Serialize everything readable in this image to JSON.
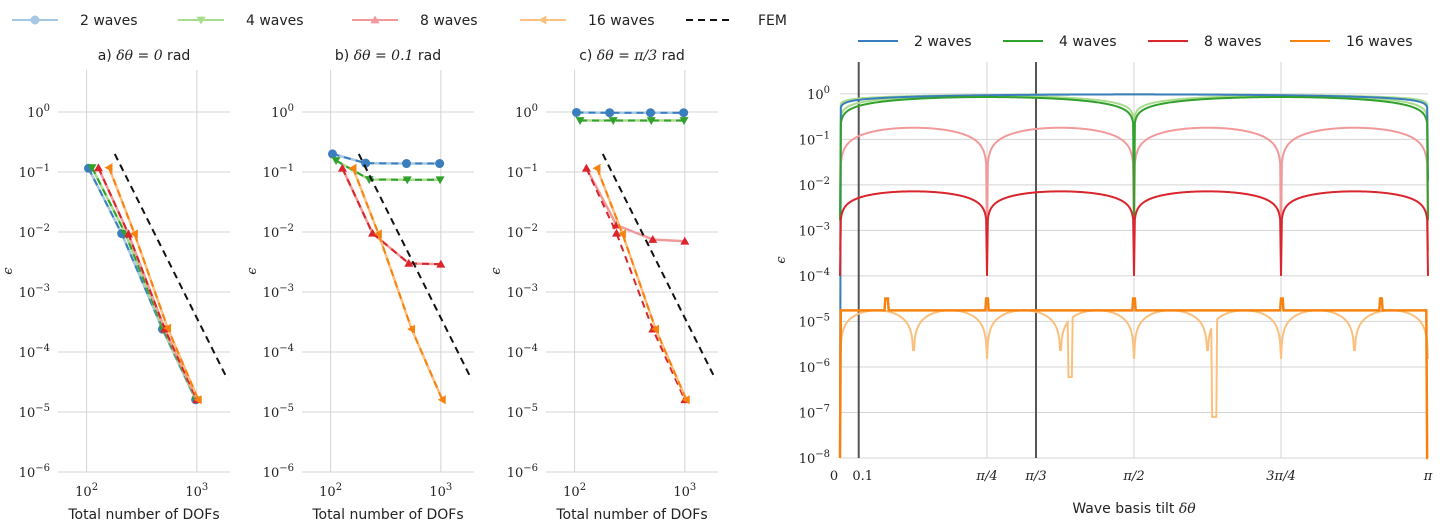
{
  "colors": {
    "2 waves": "#3a7ebd",
    "2 waves light": "#a6c8e4",
    "4 waves": "#32a02c",
    "4 waves light": "#a9dc8c",
    "8 waves": "#d9252b",
    "8 waves light": "#f2999b",
    "16 waves": "#f7820f",
    "16 waves light": "#fcc07e",
    "FEM": "#111111",
    "grid": "#d4d4d4",
    "vline": "#555555"
  },
  "left_legend": [
    "2 waves",
    "4 waves",
    "8 waves",
    "16 waves",
    "FEM"
  ],
  "right_legend": [
    "2 waves",
    "4 waves",
    "8 waves",
    "16 waves"
  ],
  "x_label": "Total number of DOFs",
  "y_label": "ϵ",
  "right_x_label_text": "Wave basis tilt",
  "right_x_label_math": "δθ",
  "chart_data": [
    {
      "type": "line",
      "panel": "a",
      "title_prefix": "a)",
      "title_math": "δθ = 0",
      "title_suffix": "rad",
      "xscale": "log",
      "yscale": "log",
      "xlim": [
        55,
        2000
      ],
      "ylim": [
        1e-06,
        5
      ],
      "xticks": [
        100,
        1000
      ],
      "xtick_labels": [
        "10^2",
        "10^3"
      ],
      "yticks": [
        1e-06,
        1e-05,
        0.0001,
        0.001,
        0.01,
        0.1,
        1
      ],
      "ytick_labels": [
        "10^-6",
        "10^-5",
        "10^-4",
        "10^-3",
        "10^-2",
        "10^-1",
        "10^0"
      ],
      "series": [
        {
          "name": "2 waves",
          "marker": "circle",
          "x": [
            104,
            208,
            488,
            976
          ],
          "y": [
            0.115,
            0.0094,
            0.00024,
            1.6e-05
          ],
          "ref_y": [
            0.115,
            0.0094,
            0.00024,
            1.6e-05
          ]
        },
        {
          "name": "4 waves",
          "marker": "triangle-down",
          "x": [
            112,
            224,
            496,
            984
          ],
          "y": [
            0.118,
            0.0095,
            0.00024,
            1.6e-05
          ],
          "ref_y": [
            0.118,
            0.0095,
            0.00024,
            1.6e-05
          ]
        },
        {
          "name": "8 waves",
          "marker": "triangle-up",
          "x": [
            128,
            240,
            512,
            1000
          ],
          "y": [
            0.117,
            0.0092,
            0.00024,
            1.6e-05
          ],
          "ref_y": [
            0.117,
            0.0092,
            0.00024,
            1.6e-05
          ]
        },
        {
          "name": "16 waves",
          "marker": "triangle-left",
          "x": [
            160,
            272,
            544,
            1032
          ],
          "y": [
            0.118,
            0.0093,
            0.00025,
            1.6e-05
          ],
          "ref_y": [
            0.118,
            0.0093,
            0.00025,
            1.6e-05
          ]
        },
        {
          "name": "FEM",
          "marker": "none",
          "x": [
            180,
            1900
          ],
          "y": [
            0.2,
            3.5e-05
          ]
        }
      ]
    },
    {
      "type": "line",
      "panel": "b",
      "title_prefix": "b)",
      "title_math": "δθ = 0.1",
      "title_suffix": "rad",
      "xscale": "log",
      "yscale": "log",
      "xlim": [
        55,
        2000
      ],
      "ylim": [
        1e-06,
        5
      ],
      "xticks": [
        100,
        1000
      ],
      "xtick_labels": [
        "10^2",
        "10^3"
      ],
      "yticks": [
        1e-06,
        1e-05,
        0.0001,
        0.001,
        0.01,
        0.1,
        1
      ],
      "ytick_labels": [
        "10^-6",
        "10^-5",
        "10^-4",
        "10^-3",
        "10^-2",
        "10^-1",
        "10^0"
      ],
      "series": [
        {
          "name": "2 waves",
          "marker": "circle",
          "x": [
            104,
            208,
            488,
            976
          ],
          "y": [
            0.2,
            0.14,
            0.138,
            0.138
          ],
          "ref_y": [
            0.2,
            0.14,
            0.138,
            0.138
          ]
        },
        {
          "name": "4 waves",
          "marker": "triangle-down",
          "x": [
            112,
            224,
            496,
            984
          ],
          "y": [
            0.155,
            0.075,
            0.074,
            0.074
          ],
          "ref_y": [
            0.155,
            0.075,
            0.074,
            0.074
          ]
        },
        {
          "name": "8 waves",
          "marker": "triangle-up",
          "x": [
            128,
            240,
            512,
            1000
          ],
          "y": [
            0.115,
            0.0095,
            0.003,
            0.0029
          ],
          "ref_y": [
            0.115,
            0.0095,
            0.003,
            0.0029
          ]
        },
        {
          "name": "16 waves",
          "marker": "triangle-left",
          "x": [
            160,
            272,
            544,
            1032
          ],
          "y": [
            0.115,
            0.0093,
            0.00024,
            1.6e-05
          ],
          "ref_y": [
            0.115,
            0.0093,
            0.00024,
            1.6e-05
          ]
        },
        {
          "name": "FEM",
          "marker": "none",
          "x": [
            180,
            1900
          ],
          "y": [
            0.2,
            3.5e-05
          ]
        }
      ]
    },
    {
      "type": "line",
      "panel": "c",
      "title_prefix": "c)",
      "title_math": "δθ = π/3",
      "title_suffix": "rad",
      "xscale": "log",
      "yscale": "log",
      "xlim": [
        55,
        2000
      ],
      "ylim": [
        1e-06,
        5
      ],
      "xticks": [
        100,
        1000
      ],
      "xtick_labels": [
        "10^2",
        "10^3"
      ],
      "yticks": [
        1e-06,
        1e-05,
        0.0001,
        0.001,
        0.01,
        0.1,
        1
      ],
      "ytick_labels": [
        "10^-6",
        "10^-5",
        "10^-4",
        "10^-3",
        "10^-2",
        "10^-1",
        "10^0"
      ],
      "series": [
        {
          "name": "2 waves",
          "marker": "circle",
          "x": [
            104,
            208,
            488,
            976
          ],
          "y": [
            0.98,
            0.97,
            0.97,
            0.97
          ],
          "ref_y": [
            0.98,
            0.97,
            0.97,
            0.97
          ]
        },
        {
          "name": "4 waves",
          "marker": "triangle-down",
          "x": [
            112,
            224,
            496,
            984
          ],
          "y": [
            0.72,
            0.72,
            0.72,
            0.72
          ],
          "ref_y": [
            0.72,
            0.72,
            0.72,
            0.72
          ]
        },
        {
          "name": "8 waves",
          "marker": "triangle-up",
          "x": [
            128,
            240,
            512,
            1000
          ],
          "y": [
            0.115,
            0.013,
            0.0075,
            0.007
          ],
          "ref_y": [
            0.115,
            0.0095,
            0.00024,
            1.6e-05
          ]
        },
        {
          "name": "16 waves",
          "marker": "triangle-left",
          "x": [
            160,
            272,
            544,
            1032
          ],
          "y": [
            0.115,
            0.0093,
            0.00024,
            1.6e-05
          ],
          "ref_y": [
            0.115,
            0.0093,
            0.00024,
            1.6e-05
          ]
        },
        {
          "name": "FEM",
          "marker": "none",
          "x": [
            180,
            1900
          ],
          "y": [
            0.2,
            3.5e-05
          ]
        }
      ]
    },
    {
      "type": "line",
      "panel": "d",
      "xscale": "linear",
      "yscale": "log",
      "xlim": [
        0,
        3.14159
      ],
      "ylim": [
        1e-08,
        5
      ],
      "xticks": [
        0,
        0.1,
        0.7854,
        1.0472,
        1.5708,
        2.3562,
        3.14159
      ],
      "xtick_labels": [
        "0",
        "0.1",
        "π/4",
        "π/3",
        "π/2",
        "3π/4",
        "π"
      ],
      "yticks": [
        1e-08,
        1e-07,
        1e-06,
        1e-05,
        0.0001,
        0.001,
        0.01,
        0.1,
        1
      ],
      "ytick_labels": [
        "10^-8",
        "10^-7",
        "10^-6",
        "10^-5",
        "10^-4",
        "10^-3",
        "10^-2",
        "10^-1",
        "10^0"
      ],
      "vertical_lines_x": [
        0.1,
        1.0472
      ],
      "series": [
        {
          "name": "2 waves",
          "model": "2",
          "level_dark": 0.97,
          "level_light": 0.97
        },
        {
          "name": "4 waves",
          "model": "4",
          "level_dark": 0.85,
          "level_light": 0.9,
          "dip_dark": 0.0017,
          "dip_light": 0.0015
        },
        {
          "name": "8 waves",
          "model": "8",
          "level_dark": 0.0072,
          "level_light": 0.18,
          "dip_dark": 0.0001,
          "dip_light": 0.00035
        },
        {
          "name": "16 waves",
          "model": "16",
          "level_dark": 1.75e-05,
          "level_light": 1.75e-05,
          "floor_light": 1.5e-06
        }
      ]
    }
  ]
}
